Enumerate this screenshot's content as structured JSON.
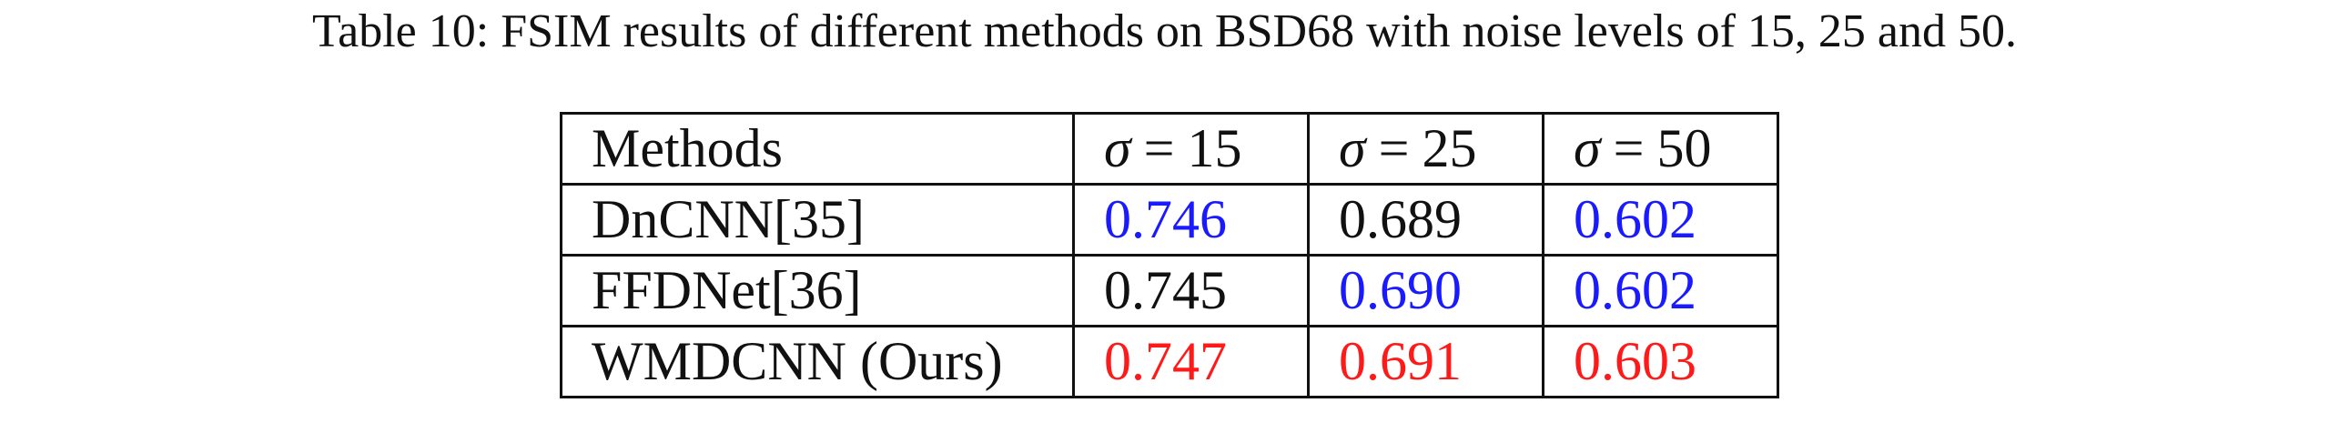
{
  "caption": "Table 10: FSIM results of different methods on BSD68 with noise levels of 15, 25 and 50.",
  "table": {
    "header": {
      "methods": "Methods",
      "sigma_symbol": "σ",
      "equals": "=",
      "noise_levels": [
        "15",
        "25",
        "50"
      ]
    },
    "rows": [
      {
        "method": "DnCNN[35]",
        "values": [
          "0.746",
          "0.689",
          "0.602"
        ],
        "highlight": [
          "blue",
          "black",
          "blue"
        ]
      },
      {
        "method": "FFDNet[36]",
        "values": [
          "0.745",
          "0.690",
          "0.602"
        ],
        "highlight": [
          "black",
          "blue",
          "blue"
        ]
      },
      {
        "method": "WMDCNN (Ours)",
        "values": [
          "0.747",
          "0.691",
          "0.603"
        ],
        "highlight": [
          "red",
          "red",
          "red"
        ]
      }
    ]
  },
  "colors": {
    "text": "#111111",
    "blue": "#1a1aff",
    "red": "#ff1a1a"
  }
}
